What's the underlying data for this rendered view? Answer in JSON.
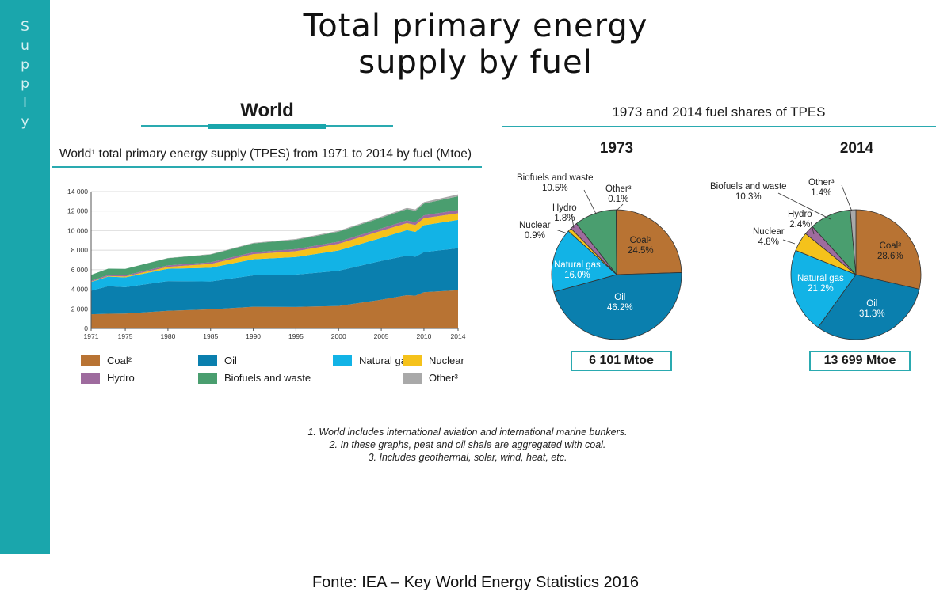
{
  "page": {
    "sidebar_label": "Supply",
    "title_line1": "Total primary energy",
    "title_line2": "supply by fuel",
    "world_heading": "World",
    "shares_heading": "1973 and 2014 fuel shares of TPES",
    "subtitle": "World¹ total primary energy supply (TPES) from 1971 to 2014 by fuel (Mtoe)",
    "footnotes": [
      "1. World includes international aviation and international marine bunkers.",
      "2. In these graphs, peat and oil shale are aggregated with coal.",
      "3. Includes geothermal, solar, wind, heat, etc."
    ],
    "source": "Fonte: IEA – Key World Energy Statistics 2016"
  },
  "colors": {
    "accent": "#1aa6ac",
    "coal": "#b87333",
    "oil": "#0a7fae",
    "natural_gas": "#12b3e6",
    "nuclear": "#f5c21b",
    "hydro": "#9e6b9e",
    "biofuels": "#4a9e6f",
    "other": "#a9a9a9"
  },
  "legend": [
    {
      "key": "coal",
      "label": "Coal²"
    },
    {
      "key": "oil",
      "label": "Oil"
    },
    {
      "key": "natural_gas",
      "label": "Natural gas"
    },
    {
      "key": "nuclear",
      "label": "Nuclear"
    },
    {
      "key": "hydro",
      "label": "Hydro"
    },
    {
      "key": "biofuels",
      "label": "Biofuels and waste"
    },
    {
      "key": "other",
      "label": "Other³"
    }
  ],
  "chart_data": [
    {
      "type": "area",
      "stacked": true,
      "ylim": [
        0,
        14000
      ],
      "yticks": [
        0,
        2000,
        4000,
        6000,
        8000,
        10000,
        12000,
        14000
      ],
      "ytick_labels": [
        "0",
        "2 000",
        "4 000",
        "6 000",
        "8 000",
        "10 000",
        "12 000",
        "14 000"
      ],
      "xlim": [
        1971,
        2014
      ],
      "xticks": [
        1971,
        1975,
        1980,
        1985,
        1990,
        1995,
        2000,
        2005,
        2010,
        2014
      ],
      "x": [
        1971,
        1973,
        1975,
        1980,
        1985,
        1990,
        1995,
        2000,
        2005,
        2008,
        2009,
        2010,
        2014
      ],
      "grid": true,
      "series": [
        {
          "key": "coal",
          "name": "Coal²",
          "values": [
            1450,
            1500,
            1520,
            1800,
            1950,
            2220,
            2200,
            2300,
            2930,
            3400,
            3350,
            3700,
            3900
          ]
        },
        {
          "key": "oil",
          "name": "Oil",
          "values": [
            2400,
            2820,
            2700,
            3050,
            2850,
            3200,
            3300,
            3600,
            3980,
            4050,
            3980,
            4100,
            4300
          ]
        },
        {
          "key": "natural_gas",
          "name": "Natural gas",
          "values": [
            900,
            980,
            1000,
            1250,
            1400,
            1650,
            1800,
            2070,
            2350,
            2600,
            2540,
            2750,
            2900
          ]
        },
        {
          "key": "nuclear",
          "name": "Nuclear",
          "values": [
            30,
            55,
            90,
            190,
            390,
            530,
            600,
            680,
            720,
            710,
            700,
            720,
            670
          ]
        },
        {
          "key": "hydro",
          "name": "Hydro",
          "values": [
            100,
            110,
            115,
            150,
            170,
            185,
            210,
            225,
            250,
            275,
            280,
            295,
            335
          ]
        },
        {
          "key": "biofuels",
          "name": "Biofuels and waste",
          "values": [
            590,
            640,
            660,
            740,
            800,
            900,
            960,
            1020,
            1090,
            1160,
            1180,
            1200,
            1410
          ]
        },
        {
          "key": "other",
          "name": "Other³",
          "values": [
            5,
            6,
            8,
            20,
            40,
            65,
            75,
            90,
            110,
            130,
            140,
            150,
            190
          ]
        }
      ]
    },
    {
      "type": "pie",
      "year": "1973",
      "total": "6 101 Mtoe",
      "slices": [
        {
          "key": "coal",
          "label": "Coal²",
          "pct": "24.5%",
          "value": 24.5
        },
        {
          "key": "oil",
          "label": "Oil",
          "pct": "46.2%",
          "value": 46.2
        },
        {
          "key": "natural_gas",
          "label": "Natural gas",
          "pct": "16.0%",
          "value": 16.0
        },
        {
          "key": "nuclear",
          "label": "Nuclear",
          "pct": "0.9%",
          "value": 0.9
        },
        {
          "key": "hydro",
          "label": "Hydro",
          "pct": "1.8%",
          "value": 1.8
        },
        {
          "key": "biofuels",
          "label": "Biofuels and waste",
          "pct": "10.5%",
          "value": 10.5
        },
        {
          "key": "other",
          "label": "Other³",
          "pct": "0.1%",
          "value": 0.1
        }
      ]
    },
    {
      "type": "pie",
      "year": "2014",
      "total": "13 699 Mtoe",
      "slices": [
        {
          "key": "coal",
          "label": "Coal²",
          "pct": "28.6%",
          "value": 28.6
        },
        {
          "key": "oil",
          "label": "Oil",
          "pct": "31.3%",
          "value": 31.3
        },
        {
          "key": "natural_gas",
          "label": "Natural gas",
          "pct": "21.2%",
          "value": 21.2
        },
        {
          "key": "nuclear",
          "label": "Nuclear",
          "pct": "4.8%",
          "value": 4.8
        },
        {
          "key": "hydro",
          "label": "Hydro",
          "pct": "2.4%",
          "value": 2.4
        },
        {
          "key": "biofuels",
          "label": "Biofuels and waste",
          "pct": "10.3%",
          "value": 10.3
        },
        {
          "key": "other",
          "label": "Other³",
          "pct": "1.4%",
          "value": 1.4
        }
      ]
    }
  ]
}
